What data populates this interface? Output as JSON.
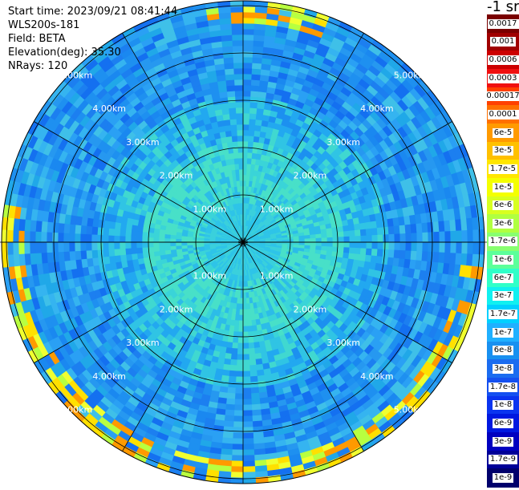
{
  "info": {
    "start_time": "Start time: 2023/09/21 08:41:44",
    "station": "WLS200s-181",
    "field": "Field: BETA",
    "elevation": "Elevation(deg): 35.30",
    "nrays": "NRays: 120"
  },
  "colorbar": {
    "unit_title": "-1 sr",
    "ticks": [
      "0.0017",
      "0.001",
      "0.0006",
      "0.0003",
      "0.00017",
      "0.0001",
      "6e-5",
      "3e-5",
      "1.7e-5",
      "1e-5",
      "6e-6",
      "3e-6",
      "1.7e-6",
      "1e-6",
      "6e-7",
      "3e-7",
      "1.7e-7",
      "1e-7",
      "6e-8",
      "3e-8",
      "1.7e-8",
      "1e-8",
      "6e-9",
      "3e-9",
      "1.7e-9",
      "1e-9"
    ],
    "colors": [
      "#7a0000",
      "#a00000",
      "#cc0000",
      "#f01010",
      "#ff4000",
      "#ff7000",
      "#ff9a00",
      "#ffc000",
      "#ffe600",
      "#f4ff00",
      "#d8ff20",
      "#b0ff40",
      "#88ff70",
      "#5cff9a",
      "#30ffc8",
      "#10f0f0",
      "#00d0ff",
      "#20b0ff",
      "#1890f0",
      "#1a6cf0",
      "#1450f0",
      "#0a34f0",
      "#0018e0",
      "#0000c0",
      "#000098",
      "#00006c"
    ]
  },
  "range_rings": {
    "labels": [
      "1.00km",
      "2.00km",
      "3.00km",
      "4.00km",
      "5.00km"
    ]
  }
}
